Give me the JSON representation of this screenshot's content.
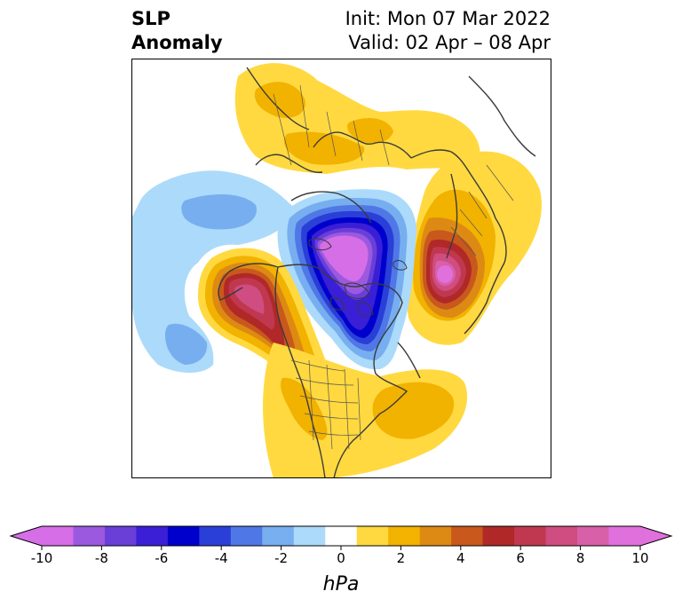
{
  "title": {
    "left_line1": "SLP",
    "left_line2": "Anomaly",
    "init": "Init: Mon 07 Mar 2022",
    "valid": "Valid: 02 Apr – 08 Apr"
  },
  "colorbar": {
    "unit": "hPa",
    "ticks": [
      "-10",
      "-8",
      "-6",
      "-4",
      "-2",
      "0",
      "2",
      "4",
      "6",
      "8",
      "10"
    ],
    "bin_colors": [
      "#d66ee8",
      "#9b59e0",
      "#6a3fd8",
      "#3a1fd6",
      "#0000cc",
      "#2a3fd8",
      "#4f78e6",
      "#77aef0",
      "#acdafa",
      "#ffffff",
      "#ffd93f",
      "#f2b200",
      "#dd8a14",
      "#c8581c",
      "#b02828",
      "#c0384f",
      "#cf4d80",
      "#d860a8",
      "#e070dc"
    ],
    "under_color": "#d66ee8",
    "over_color": "#e070dc"
  },
  "map": {
    "projection": "north-polar-stereographic",
    "anomaly_centers": [
      {
        "region": "Arctic Ocean / Canadian Arctic",
        "sign": "negative",
        "peak_hPa": -10
      },
      {
        "region": "Scandinavia / Northern Europe",
        "sign": "positive",
        "peak_hPa": 10
      },
      {
        "region": "Gulf of Alaska",
        "sign": "positive",
        "peak_hPa": 8
      },
      {
        "region": "North Pacific",
        "sign": "negative",
        "peak_hPa": -4
      },
      {
        "region": "Eastern North America / Western Atlantic",
        "sign": "positive",
        "peak_hPa": 4
      },
      {
        "region": "Siberia",
        "sign": "positive",
        "peak_hPa": 4
      }
    ]
  }
}
